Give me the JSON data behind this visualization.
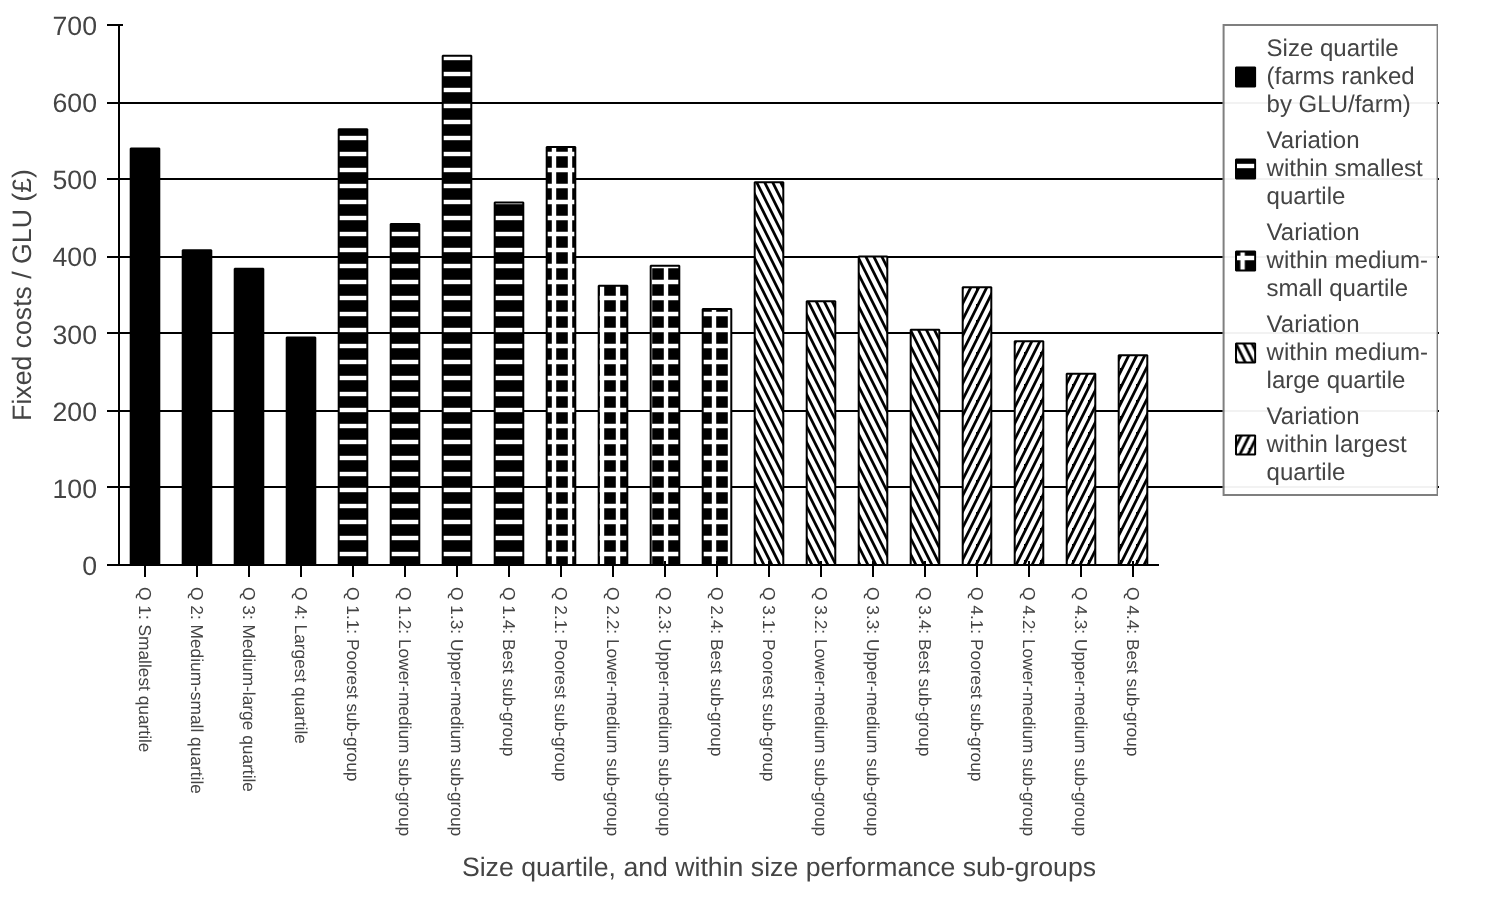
{
  "chart_data": {
    "type": "bar",
    "xlabel": "Size quartile, and within size performance sub-groups",
    "ylabel": "Fixed costs / GLU (£)",
    "categories": [
      "Q 1: Smallest quartile",
      "Q 2: Medium-small quartile",
      "Q 3: Medium-large quartile",
      "Q 4: Largest quartile",
      "Q 1.1: Poorest sub-group",
      "Q 1.2: Lower-medium sub-group",
      "Q 1.3: Upper-medium sub-group",
      "Q 1.4: Best sub-group",
      "Q 2.1: Poorest sub-group",
      "Q 2.2: Lower-medium sub-group",
      "Q 2.3: Upper-medium sub-group",
      "Q 2.4: Best sub-group",
      "Q 3.1: Poorest sub-group",
      "Q 3.2: Lower-medium sub-group",
      "Q 3.3: Upper-medium sub-group",
      "Q 3.4: Best sub-group",
      "Q 4.1: Poorest sub-group",
      "Q 4.2: Lower-medium sub-group",
      "Q 4.3: Upper-medium sub-group",
      "Q 4.4: Best sub-group"
    ],
    "series": [
      {
        "name": "Size quartile (farms ranked by GLU/farm)",
        "color": "#000000",
        "values": [
          540,
          408,
          384,
          295,
          null,
          null,
          null,
          null,
          null,
          null,
          null,
          null,
          null,
          null,
          null,
          null,
          null,
          null,
          null,
          null
        ]
      },
      {
        "name": "Variation within smallest quartile",
        "color": "#000000",
        "values": [
          null,
          null,
          null,
          null,
          565,
          442,
          660,
          470,
          null,
          null,
          null,
          null,
          null,
          null,
          null,
          null,
          null,
          null,
          null,
          null
        ]
      },
      {
        "name": "Variation within medium-small quartile",
        "color": "#000000",
        "values": [
          null,
          null,
          null,
          null,
          null,
          null,
          null,
          null,
          542,
          362,
          388,
          332,
          null,
          null,
          null,
          null,
          null,
          null,
          null,
          null
        ]
      },
      {
        "name": "Variation within medium-large quartile",
        "color": "#000000",
        "values": [
          null,
          null,
          null,
          null,
          null,
          null,
          null,
          null,
          null,
          null,
          null,
          null,
          496,
          342,
          400,
          305,
          null,
          null,
          null,
          null
        ]
      },
      {
        "name": "Variation within largest quartile",
        "color": "#000000",
        "values": [
          null,
          null,
          null,
          null,
          null,
          null,
          null,
          null,
          null,
          null,
          null,
          null,
          null,
          null,
          null,
          null,
          360,
          290,
          248,
          272
        ]
      }
    ],
    "ylim": [
      0,
      700
    ],
    "yticks": [
      0,
      100,
      200,
      300,
      400,
      500,
      600,
      700
    ],
    "grid": "y",
    "legend": "right"
  }
}
